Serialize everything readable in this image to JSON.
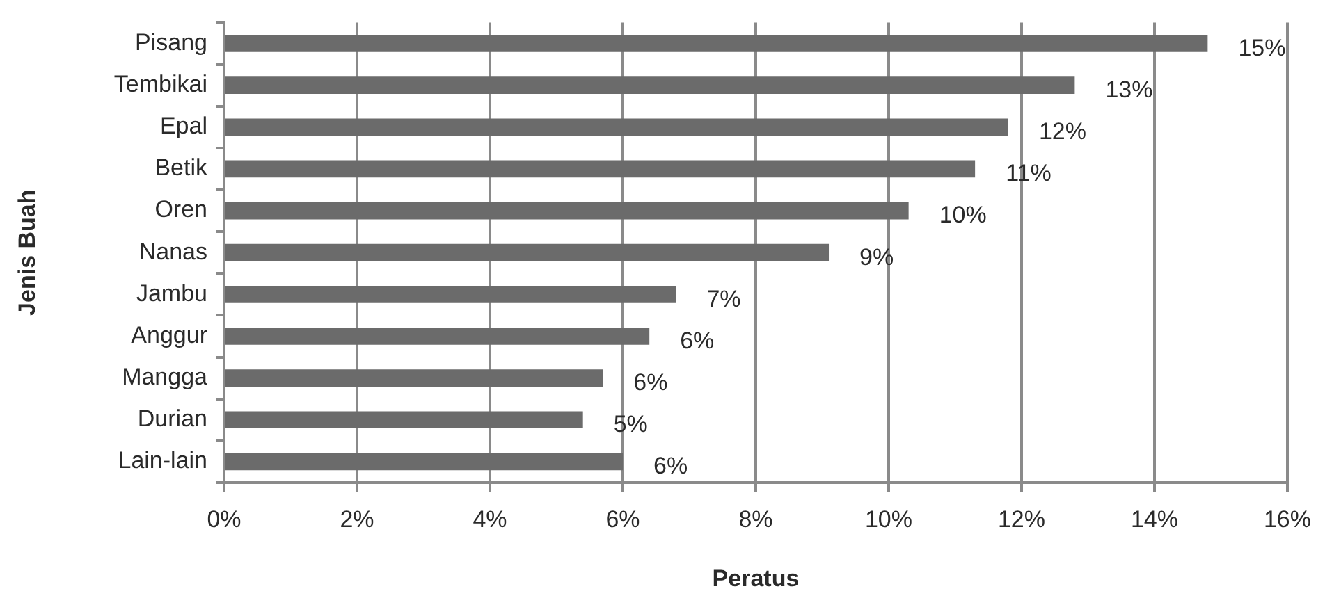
{
  "chart_data": {
    "type": "bar",
    "orientation": "horizontal",
    "xlabel": "Peratus",
    "ylabel": "Jenis Buah",
    "categories": [
      "Pisang",
      "Tembikai",
      "Epal",
      "Betik",
      "Oren",
      "Nanas",
      "Jambu",
      "Anggur",
      "Mangga",
      "Durian",
      "Lain-lain"
    ],
    "values": [
      14.8,
      12.8,
      11.8,
      11.3,
      10.3,
      9.1,
      6.8,
      6.4,
      5.7,
      5.4,
      6.0
    ],
    "value_labels": [
      "15%",
      "13%",
      "12%",
      "11%",
      "10%",
      "9%",
      "7%",
      "6%",
      "6%",
      "5%",
      "6%"
    ],
    "color": "#6b6b6b",
    "xlim": [
      0,
      16
    ],
    "xticks": [
      {
        "value": 0,
        "label": "0%"
      },
      {
        "value": 2,
        "label": "2%"
      },
      {
        "value": 4,
        "label": "4%"
      },
      {
        "value": 6,
        "label": "6%"
      },
      {
        "value": 8,
        "label": "8%"
      },
      {
        "value": 10,
        "label": "10%"
      },
      {
        "value": 12,
        "label": "12%"
      },
      {
        "value": 14,
        "label": "14%"
      },
      {
        "value": 16,
        "label": "16%"
      }
    ],
    "grid": "x"
  }
}
